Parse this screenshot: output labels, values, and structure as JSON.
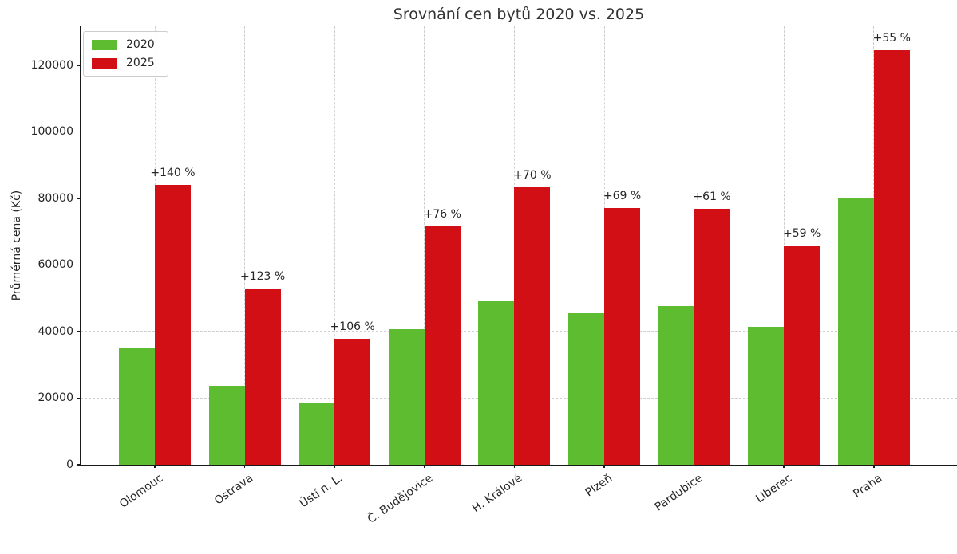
{
  "chart_data": {
    "type": "bar",
    "title": "Srovnání cen bytů 2020 vs. 2025",
    "xlabel": "",
    "ylabel": "Průměrná cena (Kč)",
    "categories": [
      "Olomouc",
      "Ostrava",
      "Ústí n. L.",
      "Č. Budějovice",
      "H. Králové",
      "Plzeň",
      "Pardubice",
      "Liberec",
      "Praha"
    ],
    "series": [
      {
        "name": "2020",
        "color": "#5ebc30",
        "values": [
          35000,
          23700,
          18400,
          40600,
          49000,
          45600,
          47700,
          41400,
          80300
        ]
      },
      {
        "name": "2025",
        "color": "#d20f14",
        "values": [
          84000,
          52900,
          37900,
          71500,
          83300,
          77000,
          76800,
          65800,
          124500
        ]
      }
    ],
    "bar_labels": [
      "+140 %",
      "+123 %",
      "+106 %",
      "+76 %",
      "+70 %",
      "+69 %",
      "+61 %",
      "+59 %",
      "+55 %"
    ],
    "yticks": [
      0,
      20000,
      40000,
      60000,
      80000,
      100000,
      120000
    ],
    "ylim": [
      0,
      131700
    ],
    "grid": "both, dashed light gray",
    "legend_position": "upper left"
  },
  "colors": {
    "grid": "#cfcfcf",
    "axis": "#1a1a1a",
    "text": "#262626",
    "title": "#333333",
    "background": "#ffffff"
  }
}
